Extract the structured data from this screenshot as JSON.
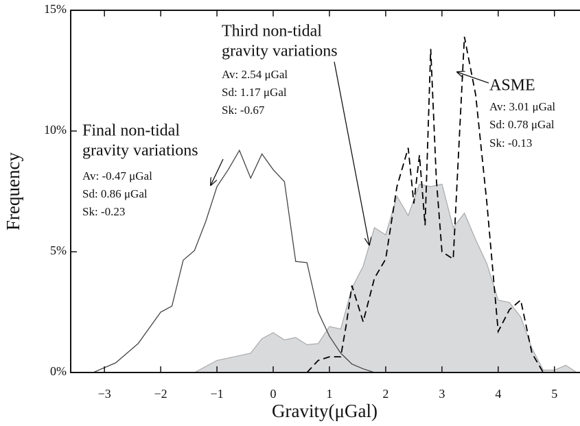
{
  "chart_data": {
    "type": "line",
    "xlabel": "Gravity(μGal)",
    "ylabel": "Frequency",
    "xlim": [
      -3.6,
      5.43
    ],
    "ylim": [
      0,
      15
    ],
    "xticks": [
      {
        "value": -3,
        "label": "−3"
      },
      {
        "value": -2,
        "label": "−2"
      },
      {
        "value": -1,
        "label": "−1"
      },
      0,
      1,
      2,
      3,
      4,
      5
    ],
    "yticks": [
      {
        "value": 0,
        "label": "0%"
      },
      {
        "value": 5,
        "label": "5%"
      },
      {
        "value": 10,
        "label": "10%"
      },
      {
        "value": 15,
        "label": "15%"
      }
    ],
    "series": [
      {
        "style": "area",
        "color": "#d9dadc",
        "x": [
          -1.4,
          -1.0,
          -0.8,
          -0.6,
          -0.4,
          -0.2,
          0,
          0.2,
          0.4,
          0.6,
          0.8,
          1.0,
          1.2,
          1.4,
          1.6,
          1.8,
          2.0,
          2.2,
          2.4,
          2.6,
          2.8,
          3.0,
          3.2,
          3.4,
          3.6,
          3.8,
          4.0,
          4.2,
          4.4,
          4.6,
          4.8,
          5.0,
          5.2,
          5.4
        ],
        "values": [
          0,
          0.5,
          0.6,
          0.7,
          0.8,
          1.4,
          1.65,
          1.35,
          1.45,
          1.15,
          1.2,
          1.9,
          1.8,
          3.5,
          4.4,
          6.0,
          5.7,
          7.3,
          6.5,
          7.8,
          7.7,
          7.8,
          6.0,
          6.6,
          5.5,
          4.5,
          3.0,
          2.9,
          2.3,
          1.0,
          0.1,
          0.1,
          0.3,
          0
        ]
      },
      {
        "style": "solid",
        "color": "#444444",
        "x": [
          -3.5,
          -3.2,
          -2.8,
          -2.4,
          -2.0,
          -1.8,
          -1.6,
          -1.4,
          -1.2,
          -1.0,
          -0.8,
          -0.6,
          -0.4,
          -0.2,
          0,
          0.2,
          0.4,
          0.6,
          0.8,
          1.0,
          1.2,
          1.4,
          1.6,
          1.8
        ],
        "values": [
          0,
          0,
          0.4,
          1.2,
          2.5,
          2.75,
          4.65,
          5.05,
          6.25,
          7.7,
          8.4,
          9.2,
          8.05,
          9.05,
          8.4,
          7.9,
          4.6,
          4.55,
          2.5,
          1.5,
          0.8,
          0.35,
          0.15,
          0
        ]
      },
      {
        "style": "dashed",
        "color": "#000000",
        "x": [
          0.6,
          0.8,
          1.0,
          1.2,
          1.3,
          1.4,
          1.6,
          1.8,
          2.0,
          2.2,
          2.4,
          2.5,
          2.6,
          2.7,
          2.8,
          2.9,
          3.0,
          3.2,
          3.4,
          3.6,
          3.8,
          4.0,
          4.2,
          4.4,
          4.6,
          4.8,
          5.0
        ],
        "values": [
          0,
          0.5,
          0.65,
          0.65,
          2.0,
          3.6,
          2.1,
          3.9,
          4.7,
          7.7,
          9.3,
          7.0,
          9.0,
          6.1,
          13.4,
          8.0,
          5.0,
          4.7,
          13.9,
          11.5,
          7.0,
          1.7,
          2.6,
          3.0,
          0.8,
          0,
          0
        ]
      }
    ],
    "annotations": [
      {
        "title": [
          "Final non-tidal",
          "gravity variations"
        ],
        "stats": [
          "Av: -0.47 μGal",
          "Sd: 0.86 μGal",
          "Sk: -0.23"
        ]
      },
      {
        "title": [
          "Third non-tidal",
          "gravity variations"
        ],
        "stats": [
          "Av: 2.54 μGal",
          "Sd: 1.17 μGal",
          "Sk: -0.67"
        ]
      },
      {
        "title": [
          "ASME"
        ],
        "stats": [
          "Av: 3.01 μGal",
          "Sd: 0.78 μGal",
          "Sk: -0.13"
        ]
      }
    ]
  }
}
